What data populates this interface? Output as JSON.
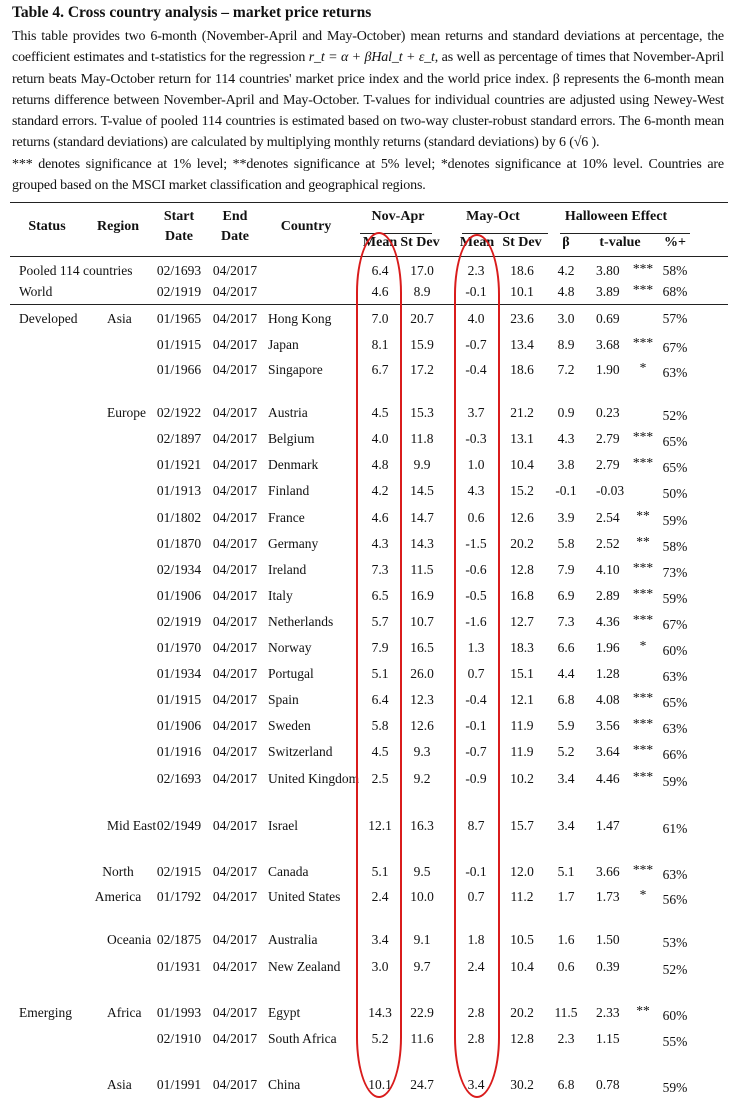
{
  "title": "Table 4. Cross country analysis – market price returns",
  "caption": {
    "text_before_formula": "This table provides two 6-month (November-April and May-October) mean returns and standard deviations at percentage, the coefficient estimates and t-statistics for the regression",
    "formula": "r_t = α + βHal_t + ε_t",
    "text_after_formula": ", as well as percentage of times that November-April return beats May-October return for 114 countries' market price index  and the world price index. β represents the 6-month mean returns difference between November-April and May-October.  T-values for individual countries are adjusted using Newey-West standard errors. T-value of pooled 114 countries is estimated based on two-way cluster-robust standard errors.  The 6-month mean returns (standard deviations) are calculated by multiplying monthly returns (standard deviations) by 6 (√6 ).",
    "significance_note": "*** denotes significance at 1% level; **denotes significance at 5% level; *denotes significance at 10% level. Countries are grouped based on the  MSCI market classification and geographical regions."
  },
  "headers": {
    "status": "Status",
    "region": "Region",
    "start_date": [
      "Start",
      "Date"
    ],
    "end_date": [
      "End",
      "Date"
    ],
    "country": "Country",
    "nov_apr": "Nov-Apr",
    "may_oct": "May-Oct",
    "halloween": "Halloween Effect",
    "mean": "Mean",
    "st_dev": "St Dev",
    "beta": "β",
    "t_value": "t-value",
    "pct_plus": "%+"
  },
  "rows": [
    {
      "status": "Pooled 114 countries",
      "region": "",
      "start": "02/1693",
      "end": "04/2017",
      "country": "",
      "na_mean": "6.4",
      "na_sd": "17.0",
      "mo_mean": "2.3",
      "mo_sd": "18.6",
      "beta": "4.2",
      "t": "3.80",
      "sig": "***",
      "pct": "58%"
    },
    {
      "status": "World",
      "region": "",
      "start": "02/1919",
      "end": "04/2017",
      "country": "",
      "na_mean": "4.6",
      "na_sd": "8.9",
      "mo_mean": "-0.1",
      "mo_sd": "10.1",
      "beta": "4.8",
      "t": "3.89",
      "sig": "***",
      "pct": "68%"
    },
    {
      "status": "Developed",
      "region": "Asia",
      "start": "01/1965",
      "end": "04/2017",
      "country": "Hong Kong",
      "na_mean": "7.0",
      "na_sd": "20.7",
      "mo_mean": "4.0",
      "mo_sd": "23.6",
      "beta": "3.0",
      "t": "0.69",
      "sig": "",
      "pct": "57%"
    },
    {
      "status": "",
      "region": "",
      "start": "01/1915",
      "end": "04/2017",
      "country": "Japan",
      "na_mean": "8.1",
      "na_sd": "15.9",
      "mo_mean": "-0.7",
      "mo_sd": "13.4",
      "beta": "8.9",
      "t": "3.68",
      "sig": "***",
      "pct": "67%"
    },
    {
      "status": "",
      "region": "",
      "start": "01/1966",
      "end": "04/2017",
      "country": "Singapore",
      "na_mean": "6.7",
      "na_sd": "17.2",
      "mo_mean": "-0.4",
      "mo_sd": "18.6",
      "beta": "7.2",
      "t": "1.90",
      "sig": "*",
      "pct": "63%"
    },
    {
      "status": "",
      "region": "Europe",
      "start": "02/1922",
      "end": "04/2017",
      "country": "Austria",
      "na_mean": "4.5",
      "na_sd": "15.3",
      "mo_mean": "3.7",
      "mo_sd": "21.2",
      "beta": "0.9",
      "t": "0.23",
      "sig": "",
      "pct": "52%"
    },
    {
      "status": "",
      "region": "",
      "start": "02/1897",
      "end": "04/2017",
      "country": "Belgium",
      "na_mean": "4.0",
      "na_sd": "11.8",
      "mo_mean": "-0.3",
      "mo_sd": "13.1",
      "beta": "4.3",
      "t": "2.79",
      "sig": "***",
      "pct": "65%"
    },
    {
      "status": "",
      "region": "",
      "start": "01/1921",
      "end": "04/2017",
      "country": "Denmark",
      "na_mean": "4.8",
      "na_sd": "9.9",
      "mo_mean": "1.0",
      "mo_sd": "10.4",
      "beta": "3.8",
      "t": "2.79",
      "sig": "***",
      "pct": "65%"
    },
    {
      "status": "",
      "region": "",
      "start": "01/1913",
      "end": "04/2017",
      "country": "Finland",
      "na_mean": "4.2",
      "na_sd": "14.5",
      "mo_mean": "4.3",
      "mo_sd": "15.2",
      "beta": "-0.1",
      "t": "-0.03",
      "sig": "",
      "pct": "50%"
    },
    {
      "status": "",
      "region": "",
      "start": "01/1802",
      "end": "04/2017",
      "country": "France",
      "na_mean": "4.6",
      "na_sd": "14.7",
      "mo_mean": "0.6",
      "mo_sd": "12.6",
      "beta": "3.9",
      "t": "2.54",
      "sig": "**",
      "pct": "59%"
    },
    {
      "status": "",
      "region": "",
      "start": "01/1870",
      "end": "04/2017",
      "country": "Germany",
      "na_mean": "4.3",
      "na_sd": "14.3",
      "mo_mean": "-1.5",
      "mo_sd": "20.2",
      "beta": "5.8",
      "t": "2.52",
      "sig": "**",
      "pct": "58%"
    },
    {
      "status": "",
      "region": "",
      "start": "02/1934",
      "end": "04/2017",
      "country": "Ireland",
      "na_mean": "7.3",
      "na_sd": "11.5",
      "mo_mean": "-0.6",
      "mo_sd": "12.8",
      "beta": "7.9",
      "t": "4.10",
      "sig": "***",
      "pct": "73%"
    },
    {
      "status": "",
      "region": "",
      "start": "01/1906",
      "end": "04/2017",
      "country": "Italy",
      "na_mean": "6.5",
      "na_sd": "16.9",
      "mo_mean": "-0.5",
      "mo_sd": "16.8",
      "beta": "6.9",
      "t": "2.89",
      "sig": "***",
      "pct": "59%"
    },
    {
      "status": "",
      "region": "",
      "start": "02/1919",
      "end": "04/2017",
      "country": "Netherlands",
      "na_mean": "5.7",
      "na_sd": "10.7",
      "mo_mean": "-1.6",
      "mo_sd": "12.7",
      "beta": "7.3",
      "t": "4.36",
      "sig": "***",
      "pct": "67%"
    },
    {
      "status": "",
      "region": "",
      "start": "01/1970",
      "end": "04/2017",
      "country": "Norway",
      "na_mean": "7.9",
      "na_sd": "16.5",
      "mo_mean": "1.3",
      "mo_sd": "18.3",
      "beta": "6.6",
      "t": "1.96",
      "sig": "*",
      "pct": "60%"
    },
    {
      "status": "",
      "region": "",
      "start": "01/1934",
      "end": "04/2017",
      "country": "Portugal",
      "na_mean": "5.1",
      "na_sd": "26.0",
      "mo_mean": "0.7",
      "mo_sd": "15.1",
      "beta": "4.4",
      "t": "1.28",
      "sig": "",
      "pct": "63%"
    },
    {
      "status": "",
      "region": "",
      "start": "01/1915",
      "end": "04/2017",
      "country": "Spain",
      "na_mean": "6.4",
      "na_sd": "12.3",
      "mo_mean": "-0.4",
      "mo_sd": "12.1",
      "beta": "6.8",
      "t": "4.08",
      "sig": "***",
      "pct": "65%"
    },
    {
      "status": "",
      "region": "",
      "start": "01/1906",
      "end": "04/2017",
      "country": "Sweden",
      "na_mean": "5.8",
      "na_sd": "12.6",
      "mo_mean": "-0.1",
      "mo_sd": "11.9",
      "beta": "5.9",
      "t": "3.56",
      "sig": "***",
      "pct": "63%"
    },
    {
      "status": "",
      "region": "",
      "start": "01/1916",
      "end": "04/2017",
      "country": "Switzerland",
      "na_mean": "4.5",
      "na_sd": "9.3",
      "mo_mean": "-0.7",
      "mo_sd": "11.9",
      "beta": "5.2",
      "t": "3.64",
      "sig": "***",
      "pct": "66%"
    },
    {
      "status": "",
      "region": "",
      "start": "02/1693",
      "end": "04/2017",
      "country": "United Kingdom",
      "na_mean": "2.5",
      "na_sd": "9.2",
      "mo_mean": "-0.9",
      "mo_sd": "10.2",
      "beta": "3.4",
      "t": "4.46",
      "sig": "***",
      "pct": "59%"
    },
    {
      "status": "",
      "region": "Mid East",
      "start": "02/1949",
      "end": "04/2017",
      "country": "Israel",
      "na_mean": "12.1",
      "na_sd": "16.3",
      "mo_mean": "8.7",
      "mo_sd": "15.7",
      "beta": "3.4",
      "t": "1.47",
      "sig": "",
      "pct": "61%"
    },
    {
      "status": "",
      "region": "North",
      "start": "02/1915",
      "end": "04/2017",
      "country": "Canada",
      "na_mean": "5.1",
      "na_sd": "9.5",
      "mo_mean": "-0.1",
      "mo_sd": "12.0",
      "beta": "5.1",
      "t": "3.66",
      "sig": "***",
      "pct": "63%"
    },
    {
      "status": "",
      "region": "America",
      "start": "01/1792",
      "end": "04/2017",
      "country": "United States",
      "na_mean": "2.4",
      "na_sd": "10.0",
      "mo_mean": "0.7",
      "mo_sd": "11.2",
      "beta": "1.7",
      "t": "1.73",
      "sig": "*",
      "pct": "56%"
    },
    {
      "status": "",
      "region": "Oceania",
      "start": "02/1875",
      "end": "04/2017",
      "country": "Australia",
      "na_mean": "3.4",
      "na_sd": "9.1",
      "mo_mean": "1.8",
      "mo_sd": "10.5",
      "beta": "1.6",
      "t": "1.50",
      "sig": "",
      "pct": "53%"
    },
    {
      "status": "",
      "region": "",
      "start": "01/1931",
      "end": "04/2017",
      "country": "New Zealand",
      "na_mean": "3.0",
      "na_sd": "9.7",
      "mo_mean": "2.4",
      "mo_sd": "10.4",
      "beta": "0.6",
      "t": "0.39",
      "sig": "",
      "pct": "52%"
    },
    {
      "status": "Emerging",
      "region": "Africa",
      "start": "01/1993",
      "end": "04/2017",
      "country": "Egypt",
      "na_mean": "14.3",
      "na_sd": "22.9",
      "mo_mean": "2.8",
      "mo_sd": "20.2",
      "beta": "11.5",
      "t": "2.33",
      "sig": "**",
      "pct": "60%"
    },
    {
      "status": "",
      "region": "",
      "start": "02/1910",
      "end": "04/2017",
      "country": "South Africa",
      "na_mean": "5.2",
      "na_sd": "11.6",
      "mo_mean": "2.8",
      "mo_sd": "12.8",
      "beta": "2.3",
      "t": "1.15",
      "sig": "",
      "pct": "55%"
    },
    {
      "status": "",
      "region": "Asia",
      "start": "01/1991",
      "end": "04/2017",
      "country": "China",
      "na_mean": "10.1",
      "na_sd": "24.7",
      "mo_mean": "3.4",
      "mo_sd": "30.2",
      "beta": "6.8",
      "t": "0.78",
      "sig": "",
      "pct": "59%"
    }
  ],
  "highlight_color": "#d91c1c"
}
